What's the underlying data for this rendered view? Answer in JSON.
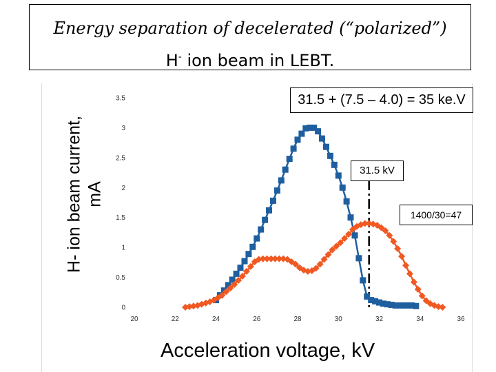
{
  "title": {
    "line1": "Energy separation of decelerated  (“polarized”)",
    "line2_prefix": "H",
    "line2_sup": "-",
    "line2_suffix": " ion beam in LEBT."
  },
  "annotations": {
    "top": "31.5 + (7.5 – 4.0) = 35 ke.V",
    "mid": "31.5 kV",
    "right": "1400/30=47"
  },
  "colors": {
    "blue_series": "#1f5f9f",
    "orange_series": "#f05a22",
    "marker_line": "#000000"
  },
  "chart_data": {
    "type": "line",
    "xlabel": "Acceleration voltage, kV",
    "ylabel": "H- ion beam current,",
    "ylabel_unit": "mA",
    "xlim": [
      20,
      36
    ],
    "ylim": [
      0,
      3.5
    ],
    "x_ticks": [
      "20",
      "22",
      "24",
      "26",
      "28",
      "30",
      "32",
      "34",
      "36"
    ],
    "y_ticks": [
      "0",
      "0.5",
      "1",
      "1.5",
      "2",
      "2.5",
      "3",
      "3.5"
    ],
    "grid": false,
    "vertical_marker_x": 31.5,
    "series": [
      {
        "color": "#1f5f9f",
        "marker": "square",
        "points": [
          [
            24.0,
            0.12
          ],
          [
            24.2,
            0.2
          ],
          [
            24.4,
            0.28
          ],
          [
            24.6,
            0.37
          ],
          [
            24.8,
            0.46
          ],
          [
            25.0,
            0.56
          ],
          [
            25.2,
            0.66
          ],
          [
            25.4,
            0.77
          ],
          [
            25.6,
            0.89
          ],
          [
            25.8,
            1.01
          ],
          [
            26.0,
            1.15
          ],
          [
            26.2,
            1.3
          ],
          [
            26.4,
            1.46
          ],
          [
            26.6,
            1.62
          ],
          [
            26.8,
            1.78
          ],
          [
            27.0,
            1.95
          ],
          [
            27.2,
            2.12
          ],
          [
            27.4,
            2.3
          ],
          [
            27.6,
            2.48
          ],
          [
            27.8,
            2.65
          ],
          [
            28.0,
            2.8
          ],
          [
            28.2,
            2.9
          ],
          [
            28.4,
            2.99
          ],
          [
            28.6,
            3.0
          ],
          [
            28.8,
            3.0
          ],
          [
            29.0,
            2.94
          ],
          [
            29.2,
            2.82
          ],
          [
            29.4,
            2.68
          ],
          [
            29.6,
            2.53
          ],
          [
            29.8,
            2.38
          ],
          [
            30.0,
            2.2
          ],
          [
            30.2,
            2.0
          ],
          [
            30.4,
            1.77
          ],
          [
            30.6,
            1.5
          ],
          [
            30.8,
            1.2
          ],
          [
            31.0,
            0.82
          ],
          [
            31.2,
            0.45
          ],
          [
            31.4,
            0.18
          ],
          [
            31.6,
            0.12
          ],
          [
            31.8,
            0.1
          ],
          [
            32.0,
            0.08
          ],
          [
            32.2,
            0.06
          ],
          [
            32.4,
            0.05
          ],
          [
            32.6,
            0.04
          ],
          [
            32.8,
            0.03
          ],
          [
            33.0,
            0.03
          ],
          [
            33.2,
            0.03
          ],
          [
            33.4,
            0.03
          ],
          [
            33.6,
            0.03
          ],
          [
            33.8,
            0.02
          ]
        ]
      },
      {
        "color": "#f05a22",
        "marker": "diamond",
        "points": [
          [
            22.5,
            0.0
          ],
          [
            22.7,
            0.01
          ],
          [
            22.9,
            0.02
          ],
          [
            23.1,
            0.03
          ],
          [
            23.3,
            0.05
          ],
          [
            23.5,
            0.07
          ],
          [
            23.7,
            0.09
          ],
          [
            23.9,
            0.12
          ],
          [
            24.1,
            0.16
          ],
          [
            24.3,
            0.2
          ],
          [
            24.5,
            0.26
          ],
          [
            24.7,
            0.32
          ],
          [
            24.9,
            0.38
          ],
          [
            25.1,
            0.45
          ],
          [
            25.3,
            0.52
          ],
          [
            25.5,
            0.6
          ],
          [
            25.7,
            0.68
          ],
          [
            25.9,
            0.76
          ],
          [
            26.1,
            0.8
          ],
          [
            26.3,
            0.81
          ],
          [
            26.5,
            0.81
          ],
          [
            26.7,
            0.81
          ],
          [
            26.9,
            0.81
          ],
          [
            27.1,
            0.81
          ],
          [
            27.3,
            0.81
          ],
          [
            27.5,
            0.8
          ],
          [
            27.7,
            0.76
          ],
          [
            27.9,
            0.72
          ],
          [
            28.1,
            0.66
          ],
          [
            28.3,
            0.62
          ],
          [
            28.5,
            0.6
          ],
          [
            28.7,
            0.61
          ],
          [
            28.9,
            0.65
          ],
          [
            29.1,
            0.72
          ],
          [
            29.3,
            0.8
          ],
          [
            29.5,
            0.88
          ],
          [
            29.7,
            0.96
          ],
          [
            29.9,
            1.02
          ],
          [
            30.1,
            1.08
          ],
          [
            30.3,
            1.15
          ],
          [
            30.5,
            1.22
          ],
          [
            30.7,
            1.3
          ],
          [
            30.9,
            1.35
          ],
          [
            31.1,
            1.38
          ],
          [
            31.3,
            1.4
          ],
          [
            31.5,
            1.4
          ],
          [
            31.7,
            1.39
          ],
          [
            31.9,
            1.37
          ],
          [
            32.1,
            1.33
          ],
          [
            32.3,
            1.28
          ],
          [
            32.5,
            1.2
          ],
          [
            32.7,
            1.1
          ],
          [
            32.9,
            0.98
          ],
          [
            33.1,
            0.85
          ],
          [
            33.3,
            0.7
          ],
          [
            33.5,
            0.56
          ],
          [
            33.7,
            0.42
          ],
          [
            33.9,
            0.3
          ],
          [
            34.1,
            0.19
          ],
          [
            34.3,
            0.11
          ],
          [
            34.5,
            0.06
          ],
          [
            34.7,
            0.03
          ],
          [
            34.9,
            0.01
          ],
          [
            35.1,
            0.0
          ]
        ]
      }
    ]
  }
}
